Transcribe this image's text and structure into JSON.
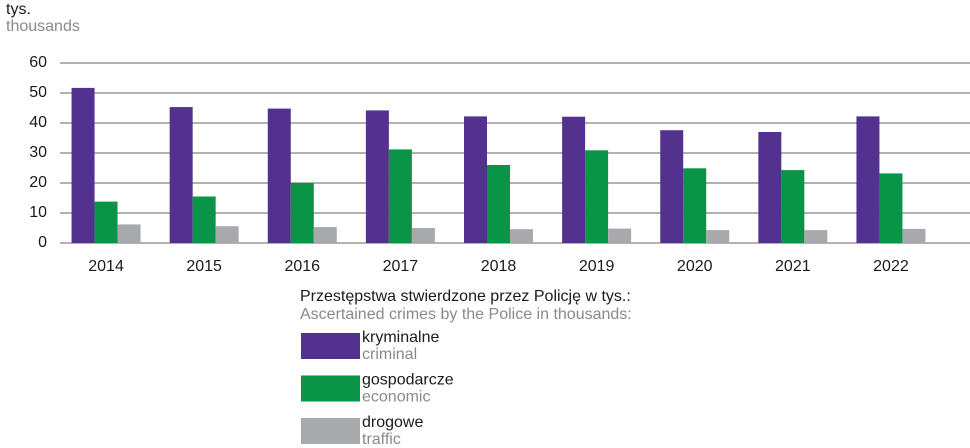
{
  "chart_data": {
    "type": "bar",
    "y_label": "tys.",
    "y_label_en": "thousands",
    "legend_title": "Przestępstwa stwierdzone przez Policję w tys.:",
    "legend_title_en": "Ascertained crimes by the Police in thousands:",
    "categories": [
      "2014",
      "2015",
      "2016",
      "2017",
      "2018",
      "2019",
      "2020",
      "2021",
      "2022"
    ],
    "series": [
      {
        "name": "kryminalne",
        "name_en": "criminal",
        "color": "#53318f",
        "values": [
          51.7,
          45.3,
          44.8,
          44.2,
          42.2,
          42.1,
          37.6,
          37.0,
          42.2
        ]
      },
      {
        "name": "gospodarcze",
        "name_en": "economic",
        "color": "#0a9447",
        "values": [
          13.8,
          15.5,
          20.0,
          31.2,
          26.0,
          30.9,
          24.9,
          24.3,
          23.2
        ]
      },
      {
        "name": "drogowe",
        "name_en": "traffic",
        "color": "#a7a9ac",
        "values": [
          6.2,
          5.6,
          5.3,
          5.0,
          4.6,
          4.8,
          4.3,
          4.3,
          4.7
        ]
      }
    ],
    "ylim": [
      0,
      60
    ],
    "yticks": [
      0,
      10,
      20,
      30,
      40,
      50,
      60
    ],
    "grid": true,
    "legend": "bottom"
  }
}
